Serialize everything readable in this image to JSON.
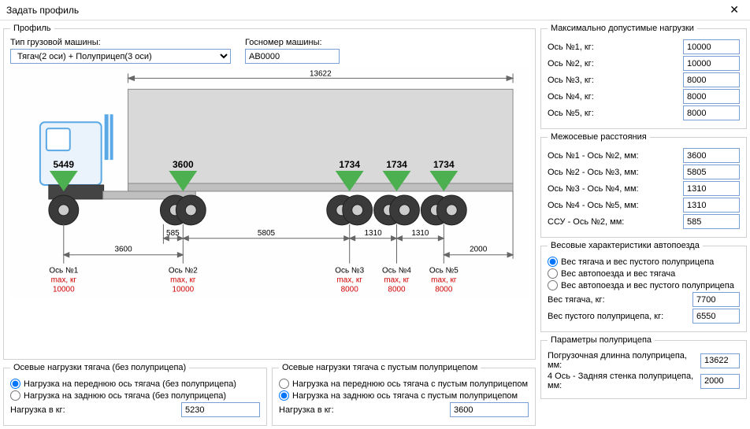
{
  "window": {
    "title": "Задать профиль"
  },
  "profile": {
    "legend": "Профиль",
    "truck_type_label": "Тип грузовой машины:",
    "truck_type_value": "Тягач(2 оси) + Полуприцеп(3 оси)",
    "plate_label": "Госномер машины:",
    "plate_value": "АВ0000"
  },
  "diagram": {
    "top_length": "13622",
    "axle_loads": [
      "5449",
      "3600",
      "1734",
      "1734",
      "1734"
    ],
    "inter_bottom": [
      "3600",
      "585",
      "5805",
      "1310",
      "1310",
      "2000"
    ],
    "axles": [
      {
        "n": "Ось №1",
        "maxlabel": "max, кг",
        "max": "10000"
      },
      {
        "n": "Ось №2",
        "maxlabel": "max, кг",
        "max": "10000"
      },
      {
        "n": "Ось №3",
        "maxlabel": "max, кг",
        "max": "8000"
      },
      {
        "n": "Ось №4",
        "maxlabel": "max, кг",
        "max": "8000"
      },
      {
        "n": "Ось №5",
        "maxlabel": "max, кг",
        "max": "8000"
      }
    ],
    "colors": {
      "truck_line": "#5aa9e6",
      "truck_fill": "#eaf3fb",
      "trailer_fill": "#d9d9d9",
      "trailer_stroke": "#888",
      "wheel_fill": "#3a3a3a",
      "arrow_green": "#4caf50",
      "dim_line": "#666"
    }
  },
  "maxloads": {
    "legend": "Максимально допустимые нагрузки",
    "rows": [
      {
        "label": "Ось №1, кг:",
        "val": "10000"
      },
      {
        "label": "Ось №2, кг:",
        "val": "10000"
      },
      {
        "label": "Ось №3, кг:",
        "val": "8000"
      },
      {
        "label": "Ось №4, кг:",
        "val": "8000"
      },
      {
        "label": "Ось №5, кг:",
        "val": "8000"
      }
    ]
  },
  "interaxle": {
    "legend": "Межосевые расстояния",
    "rows": [
      {
        "label": "Ось №1 - Ось №2, мм:",
        "val": "3600"
      },
      {
        "label": "Ось №2 - Ось №3, мм:",
        "val": "5805"
      },
      {
        "label": "Ось №3 - Ось №4, мм:",
        "val": "1310"
      },
      {
        "label": "Ось №4 - Ось №5, мм:",
        "val": "1310"
      },
      {
        "label": "ССУ - Ось №2, мм:",
        "val": "585"
      }
    ]
  },
  "weights": {
    "legend": "Весовые характеристики автопоезда",
    "radios": [
      {
        "label": "Вес тягача и вес пустого полуприцепа",
        "checked": true
      },
      {
        "label": "Вес автопоезда и вес тягача",
        "checked": false
      },
      {
        "label": "Вес автопоезда и вес пустого полуприцепа",
        "checked": false
      }
    ],
    "tractor_label": "Вес тягача, кг:",
    "tractor_val": "7700",
    "trailer_label": "Вес пустого полуприцепа, кг:",
    "trailer_val": "6550"
  },
  "tractor_only": {
    "legend": "Осевые нагрузки тягача (без полуприцепа)",
    "radios": [
      {
        "label": "Нагрузка на переднюю ось тягача (без полуприцепа)",
        "checked": true
      },
      {
        "label": "Нагрузка на заднюю ось тягача (без полуприцепа)",
        "checked": false
      }
    ],
    "load_label": "Нагрузка в кг:",
    "load_val": "5230"
  },
  "tractor_trailer": {
    "legend": "Осевые нагрузки тягача с пустым полуприцепом",
    "radios": [
      {
        "label": "Нагрузка на переднюю ось тягача с пустым полуприцепом",
        "checked": false
      },
      {
        "label": "Нагрузка на заднюю ось тягача с пустым полуприцепом",
        "checked": true
      }
    ],
    "load_label": "Нагрузка в кг:",
    "load_val": "3600"
  },
  "trailer_params": {
    "legend": "Параметры полуприцепа",
    "len_label": "Погрузочная длинна полуприцепа, мм:",
    "len_val": "13622",
    "rear_label": "4 Ось - Задняя стенка полуприцепа, мм:",
    "rear_val": "2000"
  }
}
